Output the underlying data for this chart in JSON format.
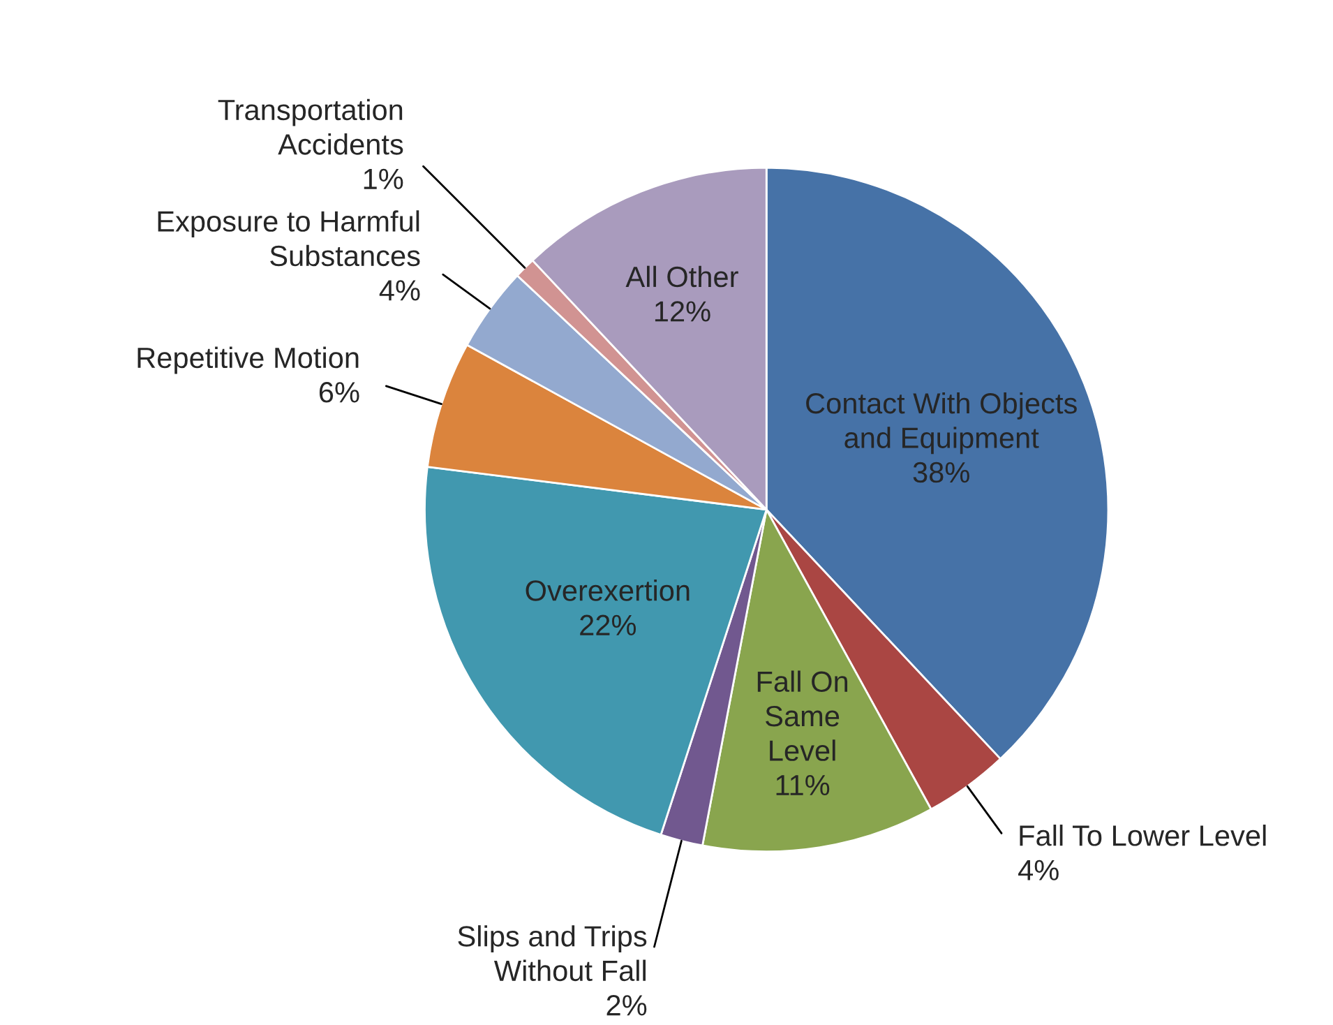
{
  "chart_data": {
    "type": "pie",
    "categories": [
      "Contact With Objects\nand Equipment",
      "Fall To Lower Level",
      "Fall On\nSame\nLevel",
      "Slips and Trips\nWithout Fall",
      "Overexertion",
      "Repetitive Motion",
      "Exposure to Harmful\nSubstances",
      "Transportation\nAccidents",
      "All Other"
    ],
    "values": [
      38,
      4,
      11,
      2,
      22,
      6,
      4,
      1,
      12
    ],
    "value_labels": [
      "38%",
      "4%",
      "11%",
      "2%",
      "22%",
      "6%",
      "4%",
      "1%",
      "12%"
    ],
    "colors": [
      "#4672a7",
      "#aa4643",
      "#89a54e",
      "#71588f",
      "#4198af",
      "#db843d",
      "#93a9cf",
      "#d19392",
      "#a99bbd"
    ]
  }
}
